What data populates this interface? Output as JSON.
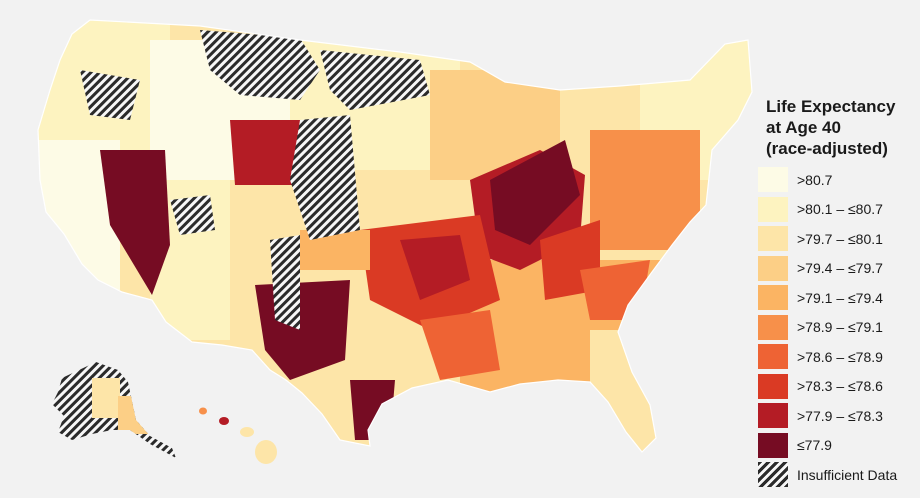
{
  "legend": {
    "title": "Life Expectancy\nat Age 40\n(race-adjusted)",
    "items": [
      {
        "label": ">80.7",
        "color": "#fdfbe6"
      },
      {
        "label": ">80.1 – ≤80.7",
        "color": "#fdf3c0"
      },
      {
        "label": ">79.7 – ≤80.1",
        "color": "#fde5a8"
      },
      {
        "label": ">79.4 – ≤79.7",
        "color": "#fccf86"
      },
      {
        "label": ">79.1 – ≤79.4",
        "color": "#fbb463"
      },
      {
        "label": ">78.9 – ≤79.1",
        "color": "#f7904a"
      },
      {
        "label": ">78.6 – ≤78.9",
        "color": "#ee6334"
      },
      {
        "label": ">78.3 – ≤78.6",
        "color": "#da3a24"
      },
      {
        "label": ">77.9 – ≤78.3",
        "color": "#b41c25"
      },
      {
        "label": "≤77.9",
        "color": "#760c23"
      },
      {
        "label": "Insufficient Data",
        "pattern": "hatch"
      }
    ]
  }
}
